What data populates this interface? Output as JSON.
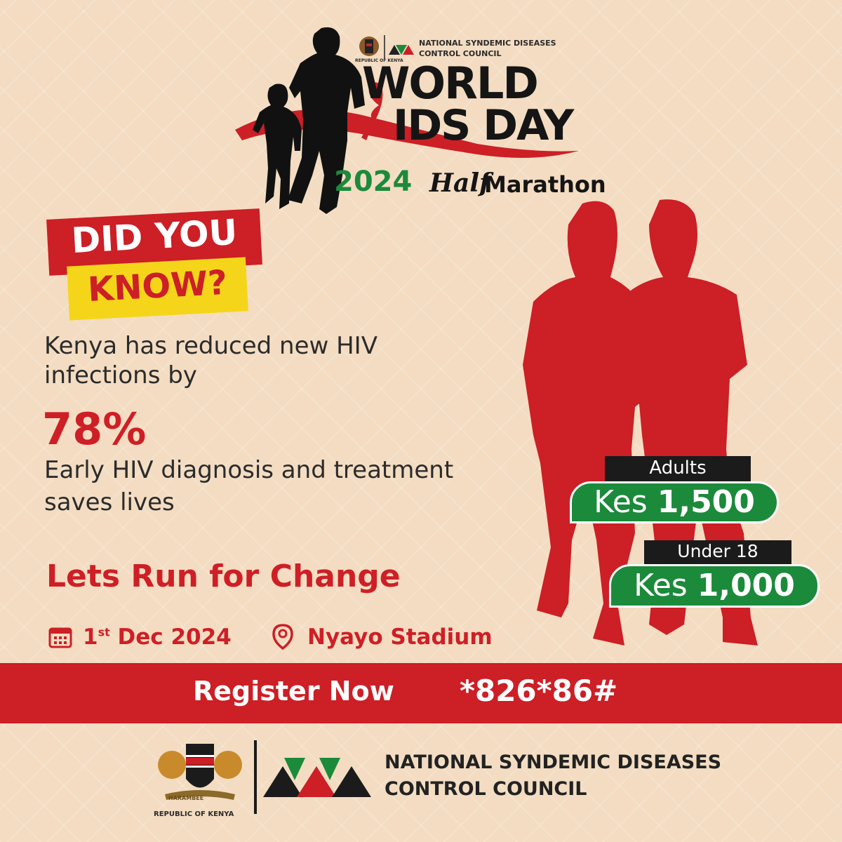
{
  "header": {
    "emblem_caption": "REPUBLIC OF KENYA",
    "org_lines": [
      "NATIONAL SYNDEMIC DISEASES",
      "CONTROL COUNCIL"
    ]
  },
  "event": {
    "title_line1": "WORLD",
    "title_line2_part": "IDS",
    "title_line2_end": "DAY",
    "year": "2024",
    "subtitle_script": "Half",
    "subtitle": "Marathon"
  },
  "callout": {
    "line1": "DID YOU",
    "line2": "KNOW?"
  },
  "fact": {
    "lines": [
      "Kenya has reduced new HIV",
      "infections by"
    ],
    "stat": "78%",
    "message_lines": [
      "Early HIV diagnosis and treatment",
      "saves lives"
    ]
  },
  "slogan": "Lets Run for Change",
  "details": {
    "date_day": "1",
    "date_suffix": "st",
    "date_rest": "Dec 2024",
    "venue": "Nyayo Stadium"
  },
  "pricing": [
    {
      "label": "Adults",
      "currency": "Kes",
      "amount": "1,500"
    },
    {
      "label": "Under 18",
      "currency": "Kes",
      "amount": "1,000"
    }
  ],
  "register": {
    "label": "Register Now",
    "code": "*826*86#"
  },
  "footer": {
    "motto": "HARAMBEE",
    "emblem_caption": "REPUBLIC OF KENYA",
    "org_lines": [
      "NATIONAL SYNDEMIC DISEASES",
      "CONTROL COUNCIL"
    ]
  }
}
